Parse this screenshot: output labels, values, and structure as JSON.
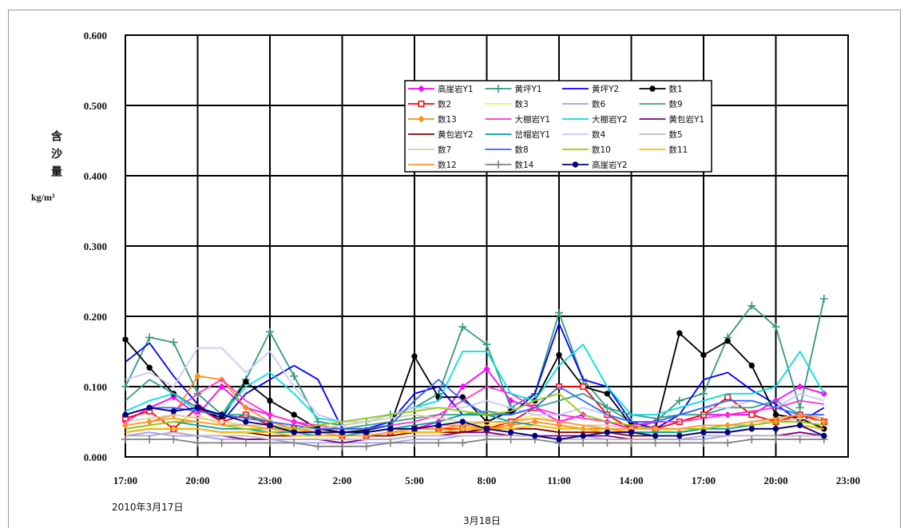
{
  "chart_data": {
    "type": "line",
    "ylabel": "含沙量",
    "yunit": "kg/m³",
    "date_labels": [
      "2010年3月17日",
      "3月18日"
    ],
    "ylim": [
      0,
      0.6
    ],
    "yticks": [
      "0.000",
      "0.100",
      "0.200",
      "0.300",
      "0.400",
      "0.500",
      "0.600"
    ],
    "xticks": [
      "17:00",
      "20:00",
      "23:00",
      "2:00",
      "5:00",
      "8:00",
      "11:00",
      "14:00",
      "17:00",
      "20:00",
      "23:00"
    ],
    "grid": true,
    "legend": "top-center",
    "x": [
      "17:00",
      "18:00",
      "19:00",
      "20:00",
      "21:00",
      "22:00",
      "23:00",
      "0:00",
      "1:00",
      "2:00",
      "3:00",
      "4:00",
      "5:00",
      "6:00",
      "7:00",
      "8:00",
      "9:00",
      "10:00",
      "11:00",
      "12:00",
      "13:00",
      "14:00",
      "15:00",
      "16:00",
      "17:00",
      "18:00",
      "19:00",
      "20:00",
      "21:00",
      "22:00"
    ],
    "series": [
      {
        "name": "高崖岩Y1",
        "color": "#ff00ff",
        "marker": "diamond",
        "values": [
          0.05,
          0.07,
          0.085,
          0.06,
          0.1,
          0.07,
          0.06,
          0.05,
          0.04,
          0.035,
          0.035,
          0.04,
          0.04,
          0.05,
          0.1,
          0.125,
          0.08,
          0.07,
          0.05,
          0.06,
          0.05,
          0.04,
          0.05,
          0.05,
          0.06,
          0.06,
          0.06,
          0.08,
          0.1,
          0.09
        ]
      },
      {
        "name": "黄坪Y1",
        "color": "#339980",
        "marker": "plus",
        "values": [
          0.1,
          0.17,
          0.163,
          0.09,
          0.06,
          0.11,
          0.178,
          0.115,
          0.05,
          0.045,
          0.05,
          0.06,
          0.07,
          0.09,
          0.185,
          0.16,
          0.07,
          0.09,
          0.205,
          0.11,
          0.07,
          0.05,
          0.05,
          0.08,
          0.09,
          0.17,
          0.215,
          0.185,
          0.07,
          0.225
        ]
      },
      {
        "name": "黄坪Y2",
        "color": "#0000ff",
        "marker": "none",
        "values": [
          0.135,
          0.162,
          0.115,
          0.075,
          0.05,
          0.09,
          0.11,
          0.13,
          0.11,
          0.04,
          0.04,
          0.05,
          0.09,
          0.1,
          0.06,
          0.06,
          0.06,
          0.09,
          0.19,
          0.11,
          0.1,
          0.05,
          0.04,
          0.06,
          0.11,
          0.12,
          0.095,
          0.075,
          0.05,
          0.07
        ]
      },
      {
        "name": "数1",
        "color": "#000000",
        "marker": "circle",
        "values": [
          0.167,
          0.127,
          0.09,
          0.07,
          0.055,
          0.107,
          0.08,
          0.06,
          0.04,
          0.035,
          0.038,
          0.045,
          0.143,
          0.085,
          0.085,
          0.05,
          0.065,
          0.08,
          0.145,
          0.1,
          0.09,
          0.045,
          0.04,
          0.176,
          0.145,
          0.165,
          0.13,
          0.06,
          0.055,
          0.04
        ]
      },
      {
        "name": "数2",
        "color": "#ff0000",
        "marker": "square",
        "values": [
          0.055,
          0.065,
          0.04,
          0.07,
          0.05,
          0.06,
          0.045,
          0.04,
          0.035,
          0.03,
          0.03,
          0.035,
          0.04,
          0.04,
          0.04,
          0.04,
          0.05,
          0.07,
          0.1,
          0.1,
          0.06,
          0.04,
          0.04,
          0.05,
          0.06,
          0.085,
          0.06,
          0.05,
          0.06,
          0.05
        ]
      },
      {
        "name": "数3",
        "color": "#f2f25a",
        "marker": "none",
        "values": [
          0.04,
          0.045,
          0.05,
          0.06,
          0.045,
          0.04,
          0.035,
          0.03,
          0.03,
          0.03,
          0.035,
          0.04,
          0.04,
          0.045,
          0.05,
          0.045,
          0.05,
          0.06,
          0.05,
          0.045,
          0.04,
          0.035,
          0.035,
          0.04,
          0.04,
          0.045,
          0.045,
          0.05,
          0.05,
          0.045
        ]
      },
      {
        "name": "数6",
        "color": "#a0a0ff",
        "marker": "none",
        "values": [
          0.03,
          0.035,
          0.03,
          0.03,
          0.025,
          0.025,
          0.025,
          0.02,
          0.02,
          0.02,
          0.02,
          0.02,
          0.025,
          0.025,
          0.03,
          0.03,
          0.03,
          0.03,
          0.03,
          0.03,
          0.025,
          0.025,
          0.025,
          0.025,
          0.025,
          0.03,
          0.03,
          0.03,
          0.035,
          0.03
        ]
      },
      {
        "name": "数9",
        "color": "#33a38a",
        "marker": "none",
        "values": [
          0.08,
          0.11,
          0.09,
          0.07,
          0.06,
          0.06,
          0.05,
          0.04,
          0.04,
          0.04,
          0.045,
          0.05,
          0.055,
          0.06,
          0.06,
          0.065,
          0.06,
          0.07,
          0.08,
          0.09,
          0.07,
          0.06,
          0.055,
          0.06,
          0.06,
          0.07,
          0.07,
          0.08,
          0.06,
          0.055
        ]
      },
      {
        "name": "数13",
        "color": "#ff8c1a",
        "marker": "diamond",
        "values": [
          0.045,
          0.05,
          0.06,
          0.115,
          0.11,
          0.07,
          0.05,
          0.04,
          0.035,
          0.03,
          0.03,
          0.035,
          0.04,
          0.04,
          0.045,
          0.04,
          0.045,
          0.05,
          0.045,
          0.04,
          0.04,
          0.035,
          0.035,
          0.035,
          0.04,
          0.045,
          0.045,
          0.05,
          0.055,
          0.05
        ]
      },
      {
        "name": "大棚岩Y1",
        "color": "#ff33cc",
        "marker": "none",
        "values": [
          0.06,
          0.07,
          0.065,
          0.09,
          0.11,
          0.08,
          0.06,
          0.05,
          0.045,
          0.04,
          0.04,
          0.045,
          0.05,
          0.06,
          0.08,
          0.1,
          0.09,
          0.07,
          0.06,
          0.055,
          0.05,
          0.045,
          0.05,
          0.05,
          0.055,
          0.06,
          0.065,
          0.07,
          0.08,
          0.075
        ]
      },
      {
        "name": "大棚岩Y2",
        "color": "#00e0e0",
        "marker": "none",
        "values": [
          0.065,
          0.08,
          0.09,
          0.065,
          0.06,
          0.1,
          0.12,
          0.09,
          0.055,
          0.05,
          0.055,
          0.06,
          0.07,
          0.08,
          0.15,
          0.15,
          0.09,
          0.08,
          0.13,
          0.16,
          0.1,
          0.06,
          0.06,
          0.07,
          0.08,
          0.09,
          0.09,
          0.1,
          0.15,
          0.09
        ]
      },
      {
        "name": "黄包岩Y1",
        "color": "#800080",
        "marker": "none",
        "values": [
          0.03,
          0.03,
          0.035,
          0.03,
          0.03,
          0.025,
          0.025,
          0.025,
          0.025,
          0.02,
          0.025,
          0.025,
          0.03,
          0.03,
          0.035,
          0.035,
          0.03,
          0.03,
          0.03,
          0.03,
          0.03,
          0.025,
          0.025,
          0.025,
          0.03,
          0.03,
          0.03,
          0.03,
          0.035,
          0.03
        ]
      },
      {
        "name": "黄包岩Y2",
        "color": "#800000",
        "marker": "none",
        "values": [
          0.035,
          0.04,
          0.04,
          0.04,
          0.035,
          0.035,
          0.03,
          0.03,
          0.03,
          0.03,
          0.03,
          0.03,
          0.035,
          0.035,
          0.035,
          0.04,
          0.04,
          0.04,
          0.035,
          0.035,
          0.035,
          0.03,
          0.03,
          0.03,
          0.035,
          0.035,
          0.04,
          0.04,
          0.045,
          0.04
        ]
      },
      {
        "name": "岔帽岩Y1",
        "color": "#00a0a0",
        "marker": "none",
        "values": [
          0.04,
          0.045,
          0.05,
          0.045,
          0.04,
          0.04,
          0.035,
          0.035,
          0.03,
          0.03,
          0.035,
          0.04,
          0.045,
          0.05,
          0.06,
          0.06,
          0.05,
          0.045,
          0.04,
          0.04,
          0.035,
          0.035,
          0.035,
          0.035,
          0.04,
          0.04,
          0.045,
          0.05,
          0.05,
          0.045
        ]
      },
      {
        "name": "数4",
        "color": "#c8c8ff",
        "marker": "none",
        "values": [
          0.11,
          0.12,
          0.1,
          0.155,
          0.155,
          0.12,
          0.15,
          0.1,
          0.06,
          0.05,
          0.05,
          0.06,
          0.07,
          0.07,
          0.07,
          0.08,
          0.07,
          0.06,
          0.06,
          0.07,
          0.06,
          0.05,
          0.05,
          0.06,
          0.07,
          0.07,
          0.08,
          0.07,
          0.09,
          0.08
        ]
      },
      {
        "name": "数5",
        "color": "#bdbdbd",
        "marker": "none",
        "values": [
          0.03,
          0.03,
          0.035,
          0.03,
          0.03,
          0.03,
          0.025,
          0.025,
          0.025,
          0.025,
          0.025,
          0.025,
          0.03,
          0.03,
          0.03,
          0.03,
          0.03,
          0.03,
          0.025,
          0.025,
          0.025,
          0.025,
          0.025,
          0.025,
          0.03,
          0.03,
          0.03,
          0.03,
          0.03,
          0.03
        ]
      },
      {
        "name": "数7",
        "color": "#d9cfa0",
        "marker": "none",
        "values": [
          0.05,
          0.055,
          0.06,
          0.055,
          0.05,
          0.045,
          0.045,
          0.04,
          0.04,
          0.045,
          0.05,
          0.055,
          0.06,
          0.055,
          0.05,
          0.05,
          0.05,
          0.055,
          0.05,
          0.045,
          0.045,
          0.04,
          0.04,
          0.04,
          0.045,
          0.045,
          0.05,
          0.05,
          0.055,
          0.05
        ]
      },
      {
        "name": "数8",
        "color": "#3366ff",
        "marker": "none",
        "values": [
          0.06,
          0.07,
          0.07,
          0.065,
          0.06,
          0.055,
          0.05,
          0.045,
          0.04,
          0.04,
          0.04,
          0.045,
          0.08,
          0.11,
          0.08,
          0.06,
          0.06,
          0.07,
          0.1,
          0.08,
          0.06,
          0.05,
          0.05,
          0.06,
          0.07,
          0.08,
          0.08,
          0.07,
          0.06,
          0.06
        ]
      },
      {
        "name": "数10",
        "color": "#99cc00",
        "marker": "none",
        "values": [
          0.04,
          0.045,
          0.05,
          0.05,
          0.045,
          0.04,
          0.04,
          0.04,
          0.045,
          0.05,
          0.055,
          0.06,
          0.065,
          0.07,
          0.065,
          0.06,
          0.065,
          0.08,
          0.09,
          0.06,
          0.05,
          0.045,
          0.04,
          0.04,
          0.04,
          0.045,
          0.045,
          0.05,
          0.05,
          0.045
        ]
      },
      {
        "name": "数11",
        "color": "#ffbb00",
        "marker": "none",
        "values": [
          0.035,
          0.04,
          0.04,
          0.04,
          0.035,
          0.035,
          0.035,
          0.03,
          0.03,
          0.03,
          0.03,
          0.035,
          0.035,
          0.035,
          0.04,
          0.04,
          0.04,
          0.045,
          0.04,
          0.04,
          0.035,
          0.035,
          0.03,
          0.03,
          0.035,
          0.035,
          0.04,
          0.04,
          0.045,
          0.04
        ]
      },
      {
        "name": "数12",
        "color": "#ff9933",
        "marker": "none",
        "values": [
          0.045,
          0.05,
          0.055,
          0.05,
          0.045,
          0.045,
          0.04,
          0.035,
          0.035,
          0.03,
          0.03,
          0.035,
          0.04,
          0.045,
          0.045,
          0.05,
          0.05,
          0.055,
          0.05,
          0.045,
          0.04,
          0.04,
          0.04,
          0.04,
          0.045,
          0.045,
          0.05,
          0.055,
          0.06,
          0.055
        ]
      },
      {
        "name": "数14",
        "color": "#808080",
        "marker": "plus",
        "values": [
          0.025,
          0.025,
          0.025,
          0.02,
          0.02,
          0.02,
          0.02,
          0.02,
          0.015,
          0.015,
          0.015,
          0.02,
          0.02,
          0.02,
          0.02,
          0.025,
          0.025,
          0.025,
          0.02,
          0.02,
          0.02,
          0.02,
          0.02,
          0.02,
          0.02,
          0.02,
          0.025,
          0.025,
          0.025,
          0.025
        ]
      },
      {
        "name": "高崖岩Y2",
        "color": "#000080",
        "marker": "circle",
        "values": [
          0.06,
          0.07,
          0.065,
          0.07,
          0.06,
          0.05,
          0.045,
          0.035,
          0.035,
          0.035,
          0.035,
          0.04,
          0.04,
          0.045,
          0.05,
          0.04,
          0.035,
          0.03,
          0.025,
          0.03,
          0.035,
          0.035,
          0.03,
          0.03,
          0.035,
          0.035,
          0.04,
          0.04,
          0.045,
          0.03
        ]
      }
    ]
  }
}
